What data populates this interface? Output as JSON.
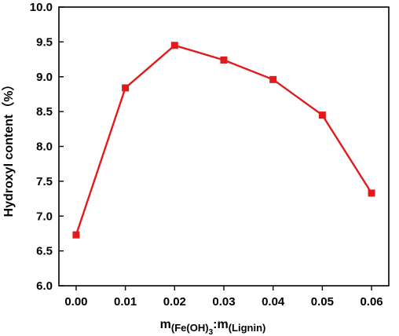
{
  "chart_data": {
    "type": "line",
    "x": [
      0.0,
      0.01,
      0.02,
      0.03,
      0.04,
      0.05,
      0.06
    ],
    "series": [
      {
        "values": [
          6.73,
          8.84,
          9.45,
          9.24,
          8.96,
          8.45,
          7.33
        ]
      }
    ],
    "x_ticks": [
      "0.00",
      "0.01",
      "0.02",
      "0.03",
      "0.04",
      "0.05",
      "0.06"
    ],
    "y_ticks": [
      "6.0",
      "6.5",
      "7.0",
      "7.5",
      "8.0",
      "8.5",
      "9.0",
      "9.5",
      "10.0"
    ],
    "xlim": [
      -0.0035,
      0.0635
    ],
    "ylim": [
      6.0,
      10.0
    ],
    "ylabel": "Hydroxyl content（%）",
    "xlabel": {
      "m1": "m",
      "sub1": "(Fe(OH)",
      "sub1_sub": "3",
      "colon": ":",
      "m2": "m",
      "sub2": "(Lignin)"
    },
    "grid": false,
    "colors": {
      "line": "#e31a1c",
      "marker": "#e31a1c",
      "axis": "#000000"
    }
  }
}
